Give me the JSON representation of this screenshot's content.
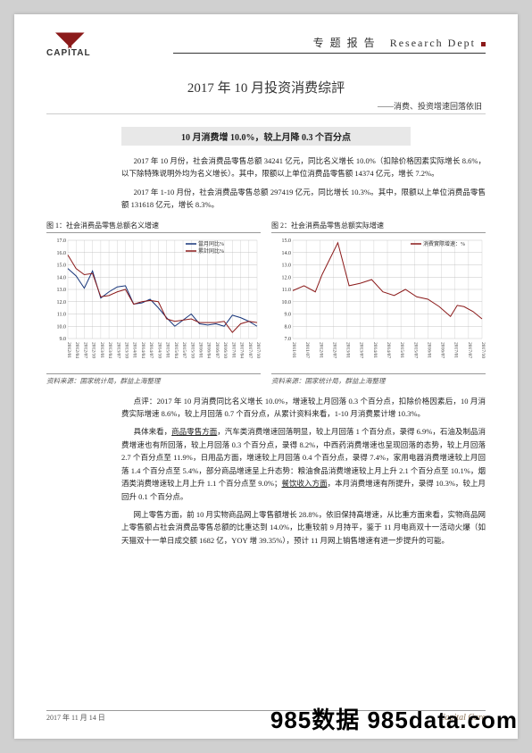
{
  "header": {
    "logo_text": "CAPITAL",
    "right_text_cn": "专 题 报 告",
    "right_text_en": "Research Dept"
  },
  "title": "2017 年 10 月投资消费综評",
  "subtitle": "——消费、投资增速回落依旧",
  "section_heading": "10 月消费增 10.0%，较上月降 0.3 个百分点",
  "para1": "2017 年 10 月份，社会消费品零售总额 34241 亿元，同比名义增长 10.0%（扣除价格因素实际增长 8.6%，以下除特殊说明外均为名义增长）。其中，限额以上单位消费品零售额 14374 亿元，增长 7.2%。",
  "para2": "2017 年 1-10 月份，社会消费品零售总额 297419 亿元，同比增长 10.3%。其中，限额以上单位消费品零售额 131618 亿元，增长 8.3%。",
  "chart1": {
    "caption": "图 1：社会消费品零售总额名义增速",
    "source": "资料来源：国家统计局，群益上海整理",
    "legend": [
      "當月同比%",
      "累計同比%"
    ],
    "y_min": 9.0,
    "y_max": 17.0,
    "y_step": 1.0,
    "x_labels": [
      "2012/01",
      "2012/04",
      "2012/07",
      "2012/10",
      "2013/01",
      "2013/04",
      "2013/07",
      "2013/10",
      "2014/01",
      "2014/04",
      "2014/07",
      "2014/10",
      "2015/01",
      "2015/04",
      "2015/07",
      "2015/10",
      "2016/01",
      "2016/04",
      "2016/07",
      "2016/10",
      "2017/01",
      "2017/04",
      "2017/07",
      "2017/10"
    ],
    "series1": [
      14.7,
      14.1,
      13.1,
      14.5,
      12.3,
      12.8,
      13.2,
      13.3,
      11.8,
      11.9,
      12.2,
      11.5,
      10.7,
      10.0,
      10.5,
      11.0,
      10.2,
      10.1,
      10.2,
      10.0,
      10.9,
      10.7,
      10.4,
      10.0
    ],
    "series2": [
      15.8,
      14.7,
      14.2,
      14.3,
      12.4,
      12.5,
      12.8,
      13.0,
      11.8,
      12.0,
      12.1,
      12.0,
      10.6,
      10.4,
      10.5,
      10.6,
      10.3,
      10.3,
      10.3,
      10.4,
      9.5,
      10.2,
      10.4,
      10.3
    ],
    "colors": {
      "series1": "#17357a",
      "series2": "#8b1a1a",
      "grid": "#b8b8b8",
      "text": "#333333"
    },
    "font_size": 6,
    "line_width": 1
  },
  "chart2": {
    "caption": "图 2：社会消费品零售总额实际增速",
    "source": "资料来源：国家统计局，群益上海整理",
    "legend": [
      "消費實際增速：%"
    ],
    "y_min": 7.0,
    "y_max": 15.0,
    "y_step": 1.0,
    "x_labels": [
      "2011/01",
      "2011/07",
      "2012/01",
      "2012/07",
      "2013/01",
      "2013/07",
      "2014/01",
      "2014/07",
      "2015/01",
      "2015/07",
      "2016/01",
      "2016/07",
      "2017/01",
      "2017/07",
      "2017/10"
    ],
    "series1": [
      10.9,
      11.3,
      10.8,
      12.2,
      14.8,
      11.3,
      11.5,
      11.8,
      10.8,
      10.5,
      11.0,
      10.4,
      10.2,
      9.6,
      8.8,
      9.7,
      9.6,
      9.2,
      8.6
    ],
    "series1_x": [
      0,
      0.5,
      1,
      1.3,
      2,
      2.5,
      3,
      3.5,
      4,
      4.5,
      5,
      5.5,
      6,
      6.5,
      7,
      7.3,
      7.6,
      8,
      8.4
    ],
    "colors": {
      "series1": "#8b1a1a",
      "grid": "#b8b8b8",
      "text": "#333333"
    },
    "font_size": 6,
    "line_width": 1
  },
  "para3": "点评：2017 年 10 月消费同比名义增长 10.0%，增速较上月回落 0.3 个百分点，扣除价格因素后，10 月消费实际增速 8.6%，较上月回落 0.7 个百分点，从累计资料来看，1-10 月消费累计增 10.3%。",
  "para4_pre": "具体来看，",
  "para4_u1": "商品零售方面",
  "para4_mid": "，汽车类消费增速回落明显，较上月回落 1 个百分点，录得 6.9%，石油及制品消费增速也有所回落，较上月回落 0.3 个百分点，录得 8.2%，中西药消费增速也呈现回落的态势，较上月回落 2.7 个百分点至 11.9%，日用品方面，增速较上月回落 0.4 个百分点，录得 7.4%，家用电器消费增速较上月回落 1.4 个百分点至 5.4%，部分商品增速呈上升态势：粮油食品消费增速较上月上升 2.1 个百分点至 10.1%，烟酒类消费增速较上月上升 1.1 个百分点至 9.0%；",
  "para4_u2": "餐饮收入方面",
  "para4_end": "，本月消费增速有所提升，录得 10.3%，较上月回升 0.1 个百分点。",
  "para5": "网上零售方面，前 10 月实物商品网上零售额增长 28.8%，依旧保持高增速，从比重方面来看，实物商品网上零售额占社会消费品零售总额的比重达到 14.0%，比重较前 9 月持平，鉴于 11 月电商双十一活动火爆（如天猫双十一单日成交额 1682 亿，YOY 增 39.35%），预计 11 月网上销售增速有进一步提升的可能。",
  "footer": {
    "date": "2017 年 11 月 14 日",
    "brand": "Capital Care"
  },
  "watermark": "985数据 985data.com"
}
